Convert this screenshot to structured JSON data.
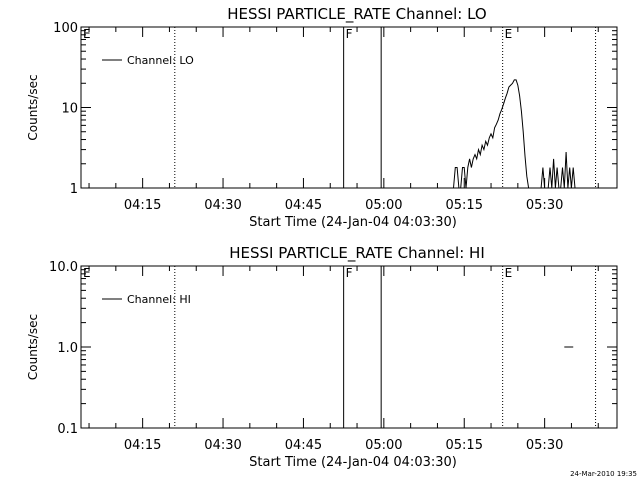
{
  "footer": {
    "timestamp": "24-Mar-2010 19:35"
  },
  "chart_data": [
    {
      "type": "line",
      "title": "HESSI PARTICLE_RATE Channel: LO",
      "xlabel": "Start Time (24-Jan-04 04:03:30)",
      "ylabel": "Counts/sec",
      "yscale": "log",
      "ylim": [
        1,
        100
      ],
      "ytick_labels": [
        "1",
        "10",
        "100"
      ],
      "xlim_minutes_after_0400": [
        3.5,
        103.5
      ],
      "xtick_labels": [
        "04:15",
        "04:30",
        "04:45",
        "05:00",
        "05:15",
        "05:30"
      ],
      "legend": {
        "label": "Channel: LO",
        "placement": "top-left"
      },
      "markers": [
        {
          "label": "E",
          "time": "04:03:30",
          "style": "dotted"
        },
        {
          "label": "",
          "time": "04:21:00",
          "style": "dotted"
        },
        {
          "label": "F",
          "time": "04:52:30",
          "style": "solid"
        },
        {
          "label": "",
          "time": "04:59:30",
          "style": "solid"
        },
        {
          "label": "E",
          "time": "05:22:10",
          "style": "dotted"
        },
        {
          "label": "",
          "time": "05:39:30",
          "style": "dotted"
        }
      ],
      "series": [
        {
          "name": "Channel: LO",
          "x": [
            "05:13:00",
            "05:13:20",
            "05:13:40",
            "05:14:00",
            "05:14:20",
            "05:14:40",
            "05:15:00",
            "05:15:20",
            "05:15:40",
            "05:16:00",
            "05:16:20",
            "05:16:40",
            "05:17:00",
            "05:17:20",
            "05:17:40",
            "05:18:00",
            "05:18:20",
            "05:18:40",
            "05:19:00",
            "05:19:20",
            "05:19:40",
            "05:20:00",
            "05:20:20",
            "05:20:40",
            "05:21:00",
            "05:21:20",
            "05:21:40",
            "05:22:00",
            "05:22:20",
            "05:22:40",
            "05:23:00",
            "05:23:20",
            "05:23:40",
            "05:24:00",
            "05:24:20",
            "05:24:40",
            "05:25:00",
            "05:25:20",
            "05:25:40",
            "05:26:00",
            "05:26:20",
            "05:26:40",
            "05:27:00",
            "05:27:20",
            "05:27:40",
            "05:28:00",
            "05:28:20",
            "05:28:40",
            "05:29:00",
            "05:29:20",
            "05:29:40",
            "05:30:00",
            "05:30:20",
            "05:30:40",
            "05:31:00",
            "05:31:20",
            "05:31:40",
            "05:32:00",
            "05:32:20",
            "05:32:40",
            "05:33:00",
            "05:33:20",
            "05:33:40",
            "05:34:00",
            "05:34:20",
            "05:34:40",
            "05:35:00",
            "05:35:20",
            "05:35:40",
            "05:36:00",
            "05:36:20",
            "05:36:40",
            "05:37:00"
          ],
          "values": [
            1.0,
            1.8,
            1.8,
            1.0,
            1.0,
            1.8,
            1.8,
            1.0,
            1.8,
            2.3,
            1.8,
            2.3,
            2.6,
            2.3,
            3.0,
            2.6,
            3.4,
            3.0,
            3.8,
            3.4,
            4.2,
            4.7,
            4.2,
            5.6,
            6.2,
            7.0,
            8.4,
            9.5,
            11,
            13,
            15,
            18,
            19,
            20,
            22,
            22,
            19,
            14,
            9,
            5,
            2.5,
            1.4,
            1.0,
            1.0,
            1.0,
            1.0,
            1.0,
            1.0,
            1.0,
            1.0,
            1.8,
            1.0,
            1.0,
            1.0,
            1.8,
            1.0,
            2.3,
            1.0,
            1.8,
            1.0,
            1.0,
            1.8,
            1.0,
            2.8,
            1.0,
            1.8,
            1.0,
            1.8,
            1.0,
            1.0,
            1.0,
            1.0,
            1.0
          ]
        }
      ]
    },
    {
      "type": "line",
      "title": "HESSI PARTICLE_RATE Channel: HI",
      "xlabel": "Start Time (24-Jan-04 04:03:30)",
      "ylabel": "Counts/sec",
      "yscale": "log",
      "ylim": [
        0.1,
        10
      ],
      "ytick_labels": [
        "0.1",
        "1.0",
        "10.0"
      ],
      "xlim_minutes_after_0400": [
        3.5,
        103.5
      ],
      "xtick_labels": [
        "04:15",
        "04:30",
        "04:45",
        "05:00",
        "05:15",
        "05:30"
      ],
      "legend": {
        "label": "Channel: HI",
        "placement": "top-left"
      },
      "markers": [
        {
          "label": "E",
          "time": "04:03:30",
          "style": "dotted"
        },
        {
          "label": "",
          "time": "04:21:00",
          "style": "dotted"
        },
        {
          "label": "F",
          "time": "04:52:30",
          "style": "solid"
        },
        {
          "label": "",
          "time": "04:59:30",
          "style": "solid"
        },
        {
          "label": "E",
          "time": "05:22:10",
          "style": "dotted"
        },
        {
          "label": "",
          "time": "05:39:30",
          "style": "dotted"
        }
      ],
      "series": [
        {
          "name": "Channel: HI",
          "x": [
            "05:33:40",
            "05:35:20"
          ],
          "values": [
            1.0,
            1.0
          ]
        }
      ]
    }
  ]
}
